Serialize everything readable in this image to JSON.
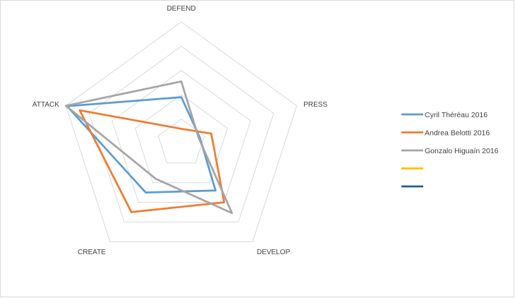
{
  "chart_data": {
    "type": "radar",
    "title": "",
    "axes": [
      "DEFEND",
      "PRESS",
      "DEVELOP",
      "CREATE",
      "ATTACK"
    ],
    "rmin": 0,
    "rmax": 5,
    "grid_levels": 5,
    "series": [
      {
        "name": "Cyril Théréau 2016",
        "color": "#5b9bd5",
        "values": [
          1.9,
          0.8,
          2.4,
          2.5,
          4.95
        ]
      },
      {
        "name": "Andrea Belotti 2016",
        "color": "#ed7d31",
        "values": [
          0.6,
          1.3,
          3.0,
          3.5,
          4.4
        ]
      },
      {
        "name": "Gonzalo Higuaín 2016",
        "color": "#a5a5a5",
        "values": [
          2.55,
          0.75,
          3.55,
          1.8,
          5.0
        ]
      },
      {
        "name": "",
        "color": "#ffc000",
        "values": []
      },
      {
        "name": "",
        "color": "#255e91",
        "values": []
      }
    ]
  }
}
